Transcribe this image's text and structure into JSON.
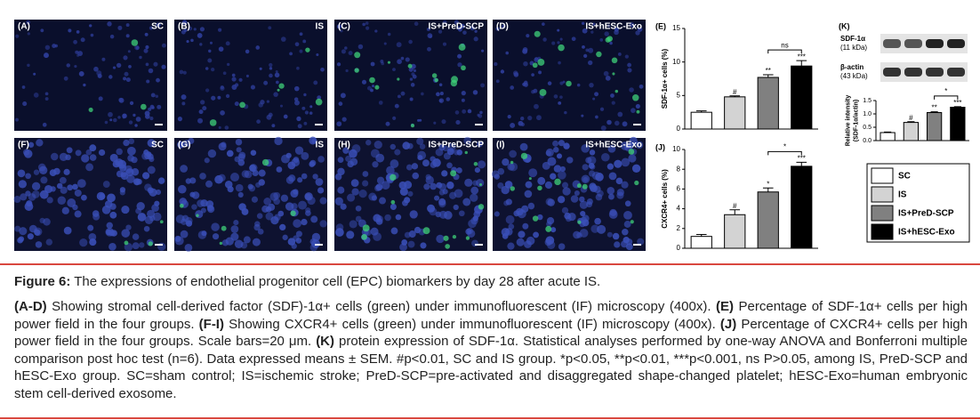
{
  "panels": [
    {
      "letter": "(A)",
      "label": "SC"
    },
    {
      "letter": "(B)",
      "label": "IS"
    },
    {
      "letter": "(C)",
      "label": "IS+PreD-SCP"
    },
    {
      "letter": "(D)",
      "label": "IS+hESC-Exo"
    },
    {
      "letter": "(F)",
      "label": "SC"
    },
    {
      "letter": "(G)",
      "label": "IS"
    },
    {
      "letter": "(H)",
      "label": "IS+PreD-SCP"
    },
    {
      "letter": "(I)",
      "label": "IS+hESC-Exo"
    }
  ],
  "legend": [
    {
      "name": "SC",
      "color": "#ffffff"
    },
    {
      "name": "IS",
      "color": "#d3d3d3"
    },
    {
      "name": "IS+PreD-SCP",
      "color": "#808080"
    },
    {
      "name": "IS+hESC-Exo",
      "color": "#000000"
    }
  ],
  "chart_data": [
    {
      "type": "bar",
      "title": "(E)",
      "ylabel": [
        "SDF-1α+ cells (%)"
      ],
      "values": [
        2.5,
        4.8,
        7.7,
        9.4
      ],
      "errors": [
        0.2,
        0.15,
        0.4,
        0.8
      ],
      "marks": [
        null,
        "#",
        "**",
        "***"
      ],
      "bracket_label": "ns",
      "ylim": [
        0,
        15
      ],
      "yticks": [
        0,
        5,
        10,
        15
      ]
    },
    {
      "type": "bar",
      "title": "(J)",
      "ylabel": [
        "CXCR4+ cells (%)"
      ],
      "values": [
        1.2,
        3.4,
        5.7,
        8.3
      ],
      "errors": [
        0.2,
        0.5,
        0.4,
        0.4
      ],
      "marks": [
        null,
        "#",
        "*",
        "***"
      ],
      "bracket_label": "*",
      "ylim": [
        0,
        10
      ],
      "yticks": [
        0,
        2,
        4,
        6,
        8,
        10
      ]
    },
    {
      "type": "bar",
      "title": "(K)",
      "ylabel": [
        "Relative intensity",
        "(SDF-1α/actin)"
      ],
      "values": [
        0.3,
        0.68,
        1.05,
        1.25
      ],
      "errors": [
        0.02,
        0.03,
        0.03,
        0.02
      ],
      "marks": [
        null,
        "#",
        "**",
        "***"
      ],
      "bracket_label": "*",
      "ylim": [
        0,
        1.5
      ],
      "yticks": [
        {
          "value": 0,
          "label": "0.0"
        },
        {
          "value": 0.5,
          "label": "0.5"
        },
        {
          "value": 1,
          "label": "1.0"
        },
        {
          "value": 1.5,
          "label": "1.5"
        }
      ]
    }
  ],
  "blot": [
    {
      "label": "SDF-1α",
      "sub": "(11 kDa)"
    },
    {
      "label": "β-actin",
      "sub": "(43 kDa)"
    }
  ],
  "caption": {
    "title": "Figure 6:",
    "text": "The expressions of endothelial progenitor cell (EPC) biomarkers by day 28 after acute IS.",
    "runs": [
      {
        "text": "(A-D)",
        "b": true
      },
      {
        "text": " Showing stromal cell-derived factor (SDF)-1α+ cells (green) under immunofluorescent (IF) microscopy (400x). "
      },
      {
        "text": "(E)",
        "b": true
      },
      {
        "text": " Percentage of SDF-1α+ cells per high power field in the four groups. "
      },
      {
        "text": "(F-I)",
        "b": true
      },
      {
        "text": " Showing CXCR4+ cells (green) under immunofluorescent (IF) microscopy (400x). "
      },
      {
        "text": "(J)",
        "b": true
      },
      {
        "text": " Percentage of CXCR4+ cells per high power field in the four groups. Scale bars=20 μm. "
      },
      {
        "text": "(K)",
        "b": true
      },
      {
        "text": " protein expression of SDF-1α. Statistical analyses performed by one-way ANOVA and Bonferroni multiple comparison post hoc test (n=6). Data expressed means ± SEM. #p<0.01, SC and IS group. *p<0.05, **p<0.01, ***p<0.001, ns P>0.05, among IS, PreD-SCP and hESC-Exo group. SC=sham control; IS=ischemic stroke; PreD-SCP=pre-activated and disaggregated shape-changed platelet; hESC-Exo=human embryonic stem cell-derived exosome."
      }
    ]
  }
}
